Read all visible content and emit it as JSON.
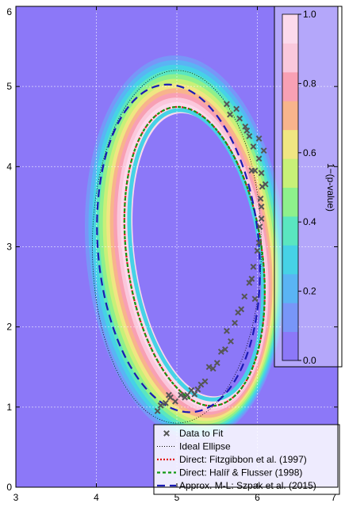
{
  "chart_data": {
    "type": "scatter",
    "xlim": [
      3,
      7
    ],
    "ylim": [
      0,
      6
    ],
    "xticks": [
      "3",
      "4",
      "5",
      "6",
      "7"
    ],
    "yticks": [
      "0",
      "1",
      "2",
      "3",
      "4",
      "5",
      "6"
    ],
    "grid": true,
    "background_color": "#8c78f8",
    "colorbar": {
      "label": "1−(p-value)",
      "range": [
        0.0,
        1.0
      ],
      "ticks": [
        "0.0",
        "0.2",
        "0.4",
        "0.6",
        "0.8",
        "1.0"
      ],
      "colors": [
        "#8c78f8",
        "#7896f8",
        "#5ab4f4",
        "#46d2e6",
        "#5ae6c0",
        "#8ef08c",
        "#c8f078",
        "#f0e682",
        "#f8b48c",
        "#f8a0b4",
        "#fac8dc",
        "#fcdaec"
      ]
    },
    "legend_position": "bottom-right",
    "legend": [
      "Data to Fit",
      "Ideal Ellipse",
      "Direct: Fitzgibbon et al. (1997)",
      "Direct: Halíř & Flusser (1998)",
      "Approx. M-L: Szpak et al. (2015)"
    ],
    "ideal_ellipse": {
      "center": [
        5.0,
        3.0
      ],
      "semi_axes": [
        1.05,
        2.2
      ],
      "angle_deg": 0
    },
    "fit_fitzgibbon": {
      "center": [
        5.22,
        2.88
      ],
      "semi_axes": [
        0.84,
        1.88
      ],
      "angle_deg": 8
    },
    "fit_halir_flusser": {
      "center": [
        5.22,
        2.88
      ],
      "semi_axes": [
        0.84,
        1.88
      ],
      "angle_deg": 8
    },
    "fit_szpak": {
      "center": [
        5.02,
        2.98
      ],
      "semi_axes": [
        1.0,
        2.05
      ],
      "angle_deg": 5
    },
    "points": [
      [
        4.76,
        0.95
      ],
      [
        4.8,
        1.02
      ],
      [
        4.86,
        1.05
      ],
      [
        4.9,
        1.15
      ],
      [
        4.92,
        1.12
      ],
      [
        4.98,
        1.07
      ],
      [
        5.05,
        1.15
      ],
      [
        5.1,
        1.12
      ],
      [
        5.13,
        1.15
      ],
      [
        5.18,
        1.21
      ],
      [
        5.22,
        1.16
      ],
      [
        5.26,
        1.22
      ],
      [
        5.3,
        1.28
      ],
      [
        5.35,
        1.32
      ],
      [
        5.4,
        1.5
      ],
      [
        5.45,
        1.48
      ],
      [
        5.5,
        1.55
      ],
      [
        5.55,
        1.69
      ],
      [
        5.6,
        1.72
      ],
      [
        5.62,
        1.95
      ],
      [
        5.67,
        1.82
      ],
      [
        5.72,
        2.05
      ],
      [
        5.76,
        2.18
      ],
      [
        5.8,
        2.22
      ],
      [
        5.84,
        2.38
      ],
      [
        5.9,
        2.55
      ],
      [
        5.93,
        2.6
      ],
      [
        5.95,
        2.75
      ],
      [
        5.97,
        2.35
      ],
      [
        6.0,
        2.95
      ],
      [
        6.02,
        3.05
      ],
      [
        6.03,
        3.25
      ],
      [
        6.05,
        3.35
      ],
      [
        6.05,
        3.5
      ],
      [
        6.04,
        3.6
      ],
      [
        6.06,
        3.75
      ],
      [
        6.1,
        3.78
      ],
      [
        6.05,
        3.92
      ],
      [
        6.02,
        4.1
      ],
      [
        5.97,
        3.95
      ],
      [
        5.93,
        3.95
      ],
      [
        5.95,
        4.25
      ],
      [
        6.08,
        4.2
      ],
      [
        5.9,
        4.38
      ],
      [
        6.02,
        4.35
      ],
      [
        5.87,
        4.45
      ],
      [
        5.85,
        4.5
      ],
      [
        5.78,
        4.6
      ],
      [
        5.74,
        4.72
      ],
      [
        5.62,
        4.78
      ],
      [
        5.66,
        4.65
      ]
    ]
  }
}
